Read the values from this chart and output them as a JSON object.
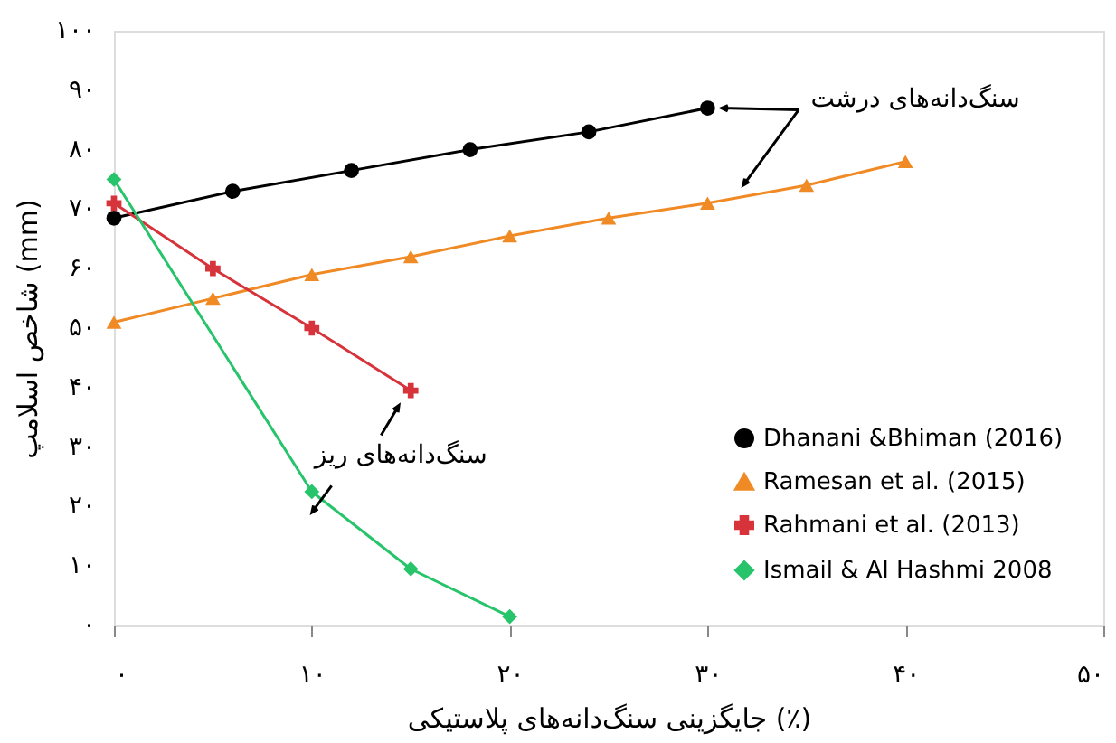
{
  "chart_data": {
    "type": "line",
    "xlabel": "جایگزینی سنگ‌دانه‌های پلاستیکی (٪)",
    "ylabel": "شاخص اسلامپ (mm)",
    "xlim": [
      0,
      50
    ],
    "ylim": [
      0,
      100
    ],
    "xticks": [
      {
        "value": 0,
        "label": "۰"
      },
      {
        "value": 10,
        "label": "۱۰"
      },
      {
        "value": 20,
        "label": "۲۰"
      },
      {
        "value": 30,
        "label": "۳۰"
      },
      {
        "value": 40,
        "label": "۴۰"
      },
      {
        "value": 50,
        "label": "۵۰"
      }
    ],
    "yticks": [
      {
        "value": 0,
        "label": "۰"
      },
      {
        "value": 10,
        "label": "۱۰"
      },
      {
        "value": 20,
        "label": "۲۰"
      },
      {
        "value": 30,
        "label": "۳۰"
      },
      {
        "value": 40,
        "label": "۴۰"
      },
      {
        "value": 50,
        "label": "۵۰"
      },
      {
        "value": 60,
        "label": "۶۰"
      },
      {
        "value": 70,
        "label": "۷۰"
      },
      {
        "value": 80,
        "label": "۸۰"
      },
      {
        "value": 90,
        "label": "۹۰"
      },
      {
        "value": 100,
        "label": "۱۰۰"
      }
    ],
    "grid": false,
    "legend": "bottom right",
    "line_style": "solid",
    "series": [
      {
        "name": "Dhanani &Bhiman (2016)",
        "color": "#000000",
        "marker": "circle",
        "x": [
          0,
          6,
          12,
          18,
          24,
          30
        ],
        "values": [
          68.5,
          73,
          76.5,
          80,
          83,
          87
        ]
      },
      {
        "name": "Ramesan et al. (2015)",
        "color": "#f08a24",
        "marker": "triangle",
        "x": [
          0,
          5,
          10,
          15,
          20,
          25,
          30,
          35,
          40
        ],
        "values": [
          51,
          55,
          59,
          62,
          65.5,
          68.5,
          71,
          74,
          78
        ]
      },
      {
        "name": "Rahmani et al. (2013)",
        "color": "#d6333a",
        "marker": "cross",
        "x": [
          0,
          5,
          10,
          15
        ],
        "values": [
          71,
          60,
          50,
          39.5
        ]
      },
      {
        "name": "Ismail & Al Hashmi 2008",
        "color": "#27c46b",
        "marker": "diamond",
        "x": [
          0,
          10,
          15,
          20
        ],
        "values": [
          75,
          22.5,
          9.5,
          1.5
        ]
      }
    ],
    "annotations": [
      "سنگ‌دانه‌های درشت",
      {
        "text": "سنگ‌دانه‌های ریز",
        "x": 15,
        "y": 39.5
      }
    ]
  }
}
